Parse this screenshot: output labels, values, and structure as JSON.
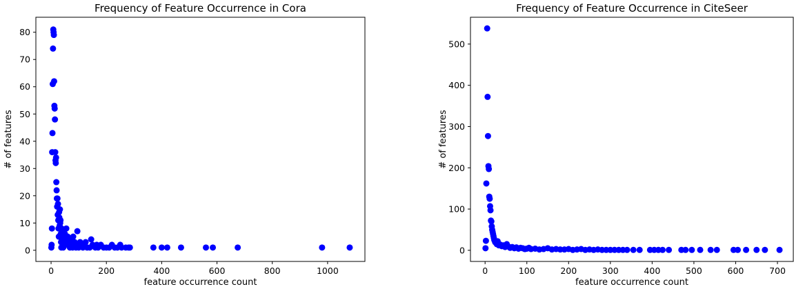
{
  "chart_data": [
    {
      "type": "scatter",
      "title": "Frequency of Feature Occurrence in Cora",
      "xlabel": "feature occurrence count",
      "ylabel": "# of features",
      "xlim": [
        -55,
        1135
      ],
      "ylim": [
        -4.1,
        85.5
      ],
      "xticks": [
        0,
        200,
        400,
        600,
        800,
        1000
      ],
      "yticks": [
        0,
        10,
        20,
        30,
        40,
        50,
        60,
        70,
        80
      ],
      "grid": false,
      "marker_color": "#0000ff",
      "x": [
        1,
        2,
        3,
        4,
        5,
        6,
        7,
        8,
        9,
        10,
        11,
        12,
        13,
        14,
        15,
        16,
        17,
        18,
        19,
        20,
        21,
        22,
        23,
        24,
        25,
        26,
        27,
        28,
        29,
        30,
        31,
        32,
        33,
        34,
        35,
        36,
        37,
        38,
        39,
        40,
        42,
        44,
        46,
        48,
        50,
        52,
        55,
        58,
        60,
        62,
        65,
        68,
        70,
        72,
        75,
        78,
        80,
        85,
        88,
        90,
        95,
        98,
        100,
        105,
        110,
        115,
        120,
        125,
        130,
        140,
        145,
        150,
        160,
        165,
        170,
        180,
        190,
        200,
        210,
        220,
        230,
        240,
        250,
        255,
        270,
        280,
        285,
        370,
        400,
        420,
        470,
        560,
        585,
        675,
        980,
        1080
      ],
      "y": [
        1,
        2,
        8,
        36,
        43,
        61,
        74,
        81,
        80,
        79,
        62,
        53,
        52,
        48,
        36,
        33,
        32,
        34,
        25,
        22,
        19,
        16,
        19,
        13,
        17,
        11,
        8,
        5,
        14,
        12,
        9,
        15,
        10,
        11,
        6,
        3,
        1,
        8,
        4,
        7,
        5,
        1,
        2,
        4,
        6,
        3,
        8,
        2,
        5,
        3,
        2,
        1,
        4,
        3,
        2,
        1,
        5,
        3,
        2,
        1,
        7,
        2,
        1,
        3,
        2,
        1,
        2,
        3,
        1,
        1,
        4,
        2,
        1,
        2,
        1,
        2,
        1,
        1,
        1,
        2,
        1,
        1,
        2,
        1,
        1,
        1,
        1,
        1,
        1,
        1,
        1,
        1,
        1,
        1,
        1,
        1
      ]
    },
    {
      "type": "scatter",
      "title": "Frequency of Feature Occurrence in CiteSeer",
      "xlabel": "feature occurrence count",
      "ylabel": "# of features",
      "xlim": [
        -35,
        738
      ],
      "ylim": [
        -27,
        565
      ],
      "xticks": [
        0,
        100,
        200,
        300,
        400,
        500,
        600,
        700
      ],
      "yticks": [
        0,
        100,
        200,
        300,
        400,
        500
      ],
      "grid": false,
      "marker_color": "#0000ff",
      "x": [
        1,
        2,
        3,
        5,
        6,
        7,
        8,
        9,
        10,
        11,
        12,
        13,
        14,
        15,
        16,
        17,
        18,
        19,
        20,
        21,
        22,
        24,
        26,
        28,
        30,
        33,
        36,
        40,
        44,
        48,
        52,
        56,
        60,
        65,
        70,
        75,
        80,
        85,
        90,
        95,
        100,
        105,
        110,
        120,
        130,
        140,
        150,
        160,
        170,
        180,
        190,
        200,
        210,
        220,
        230,
        240,
        250,
        260,
        270,
        280,
        290,
        300,
        310,
        320,
        330,
        340,
        355,
        370,
        395,
        405,
        415,
        425,
        440,
        470,
        480,
        495,
        515,
        540,
        555,
        595,
        605,
        625,
        650,
        670,
        705
      ],
      "y": [
        5,
        23,
        162,
        538,
        372,
        277,
        204,
        197,
        130,
        125,
        107,
        97,
        72,
        70,
        58,
        50,
        45,
        40,
        35,
        30,
        25,
        20,
        18,
        15,
        22,
        12,
        14,
        10,
        12,
        8,
        15,
        9,
        6,
        8,
        5,
        7,
        4,
        6,
        5,
        3,
        4,
        6,
        3,
        4,
        2,
        3,
        5,
        2,
        3,
        2,
        2,
        3,
        1,
        2,
        3,
        1,
        2,
        1,
        2,
        1,
        1,
        1,
        1,
        1,
        1,
        1,
        1,
        1,
        1,
        1,
        1,
        1,
        1,
        1,
        1,
        1,
        1,
        1,
        1,
        1,
        1,
        1,
        1,
        1,
        1
      ]
    }
  ]
}
